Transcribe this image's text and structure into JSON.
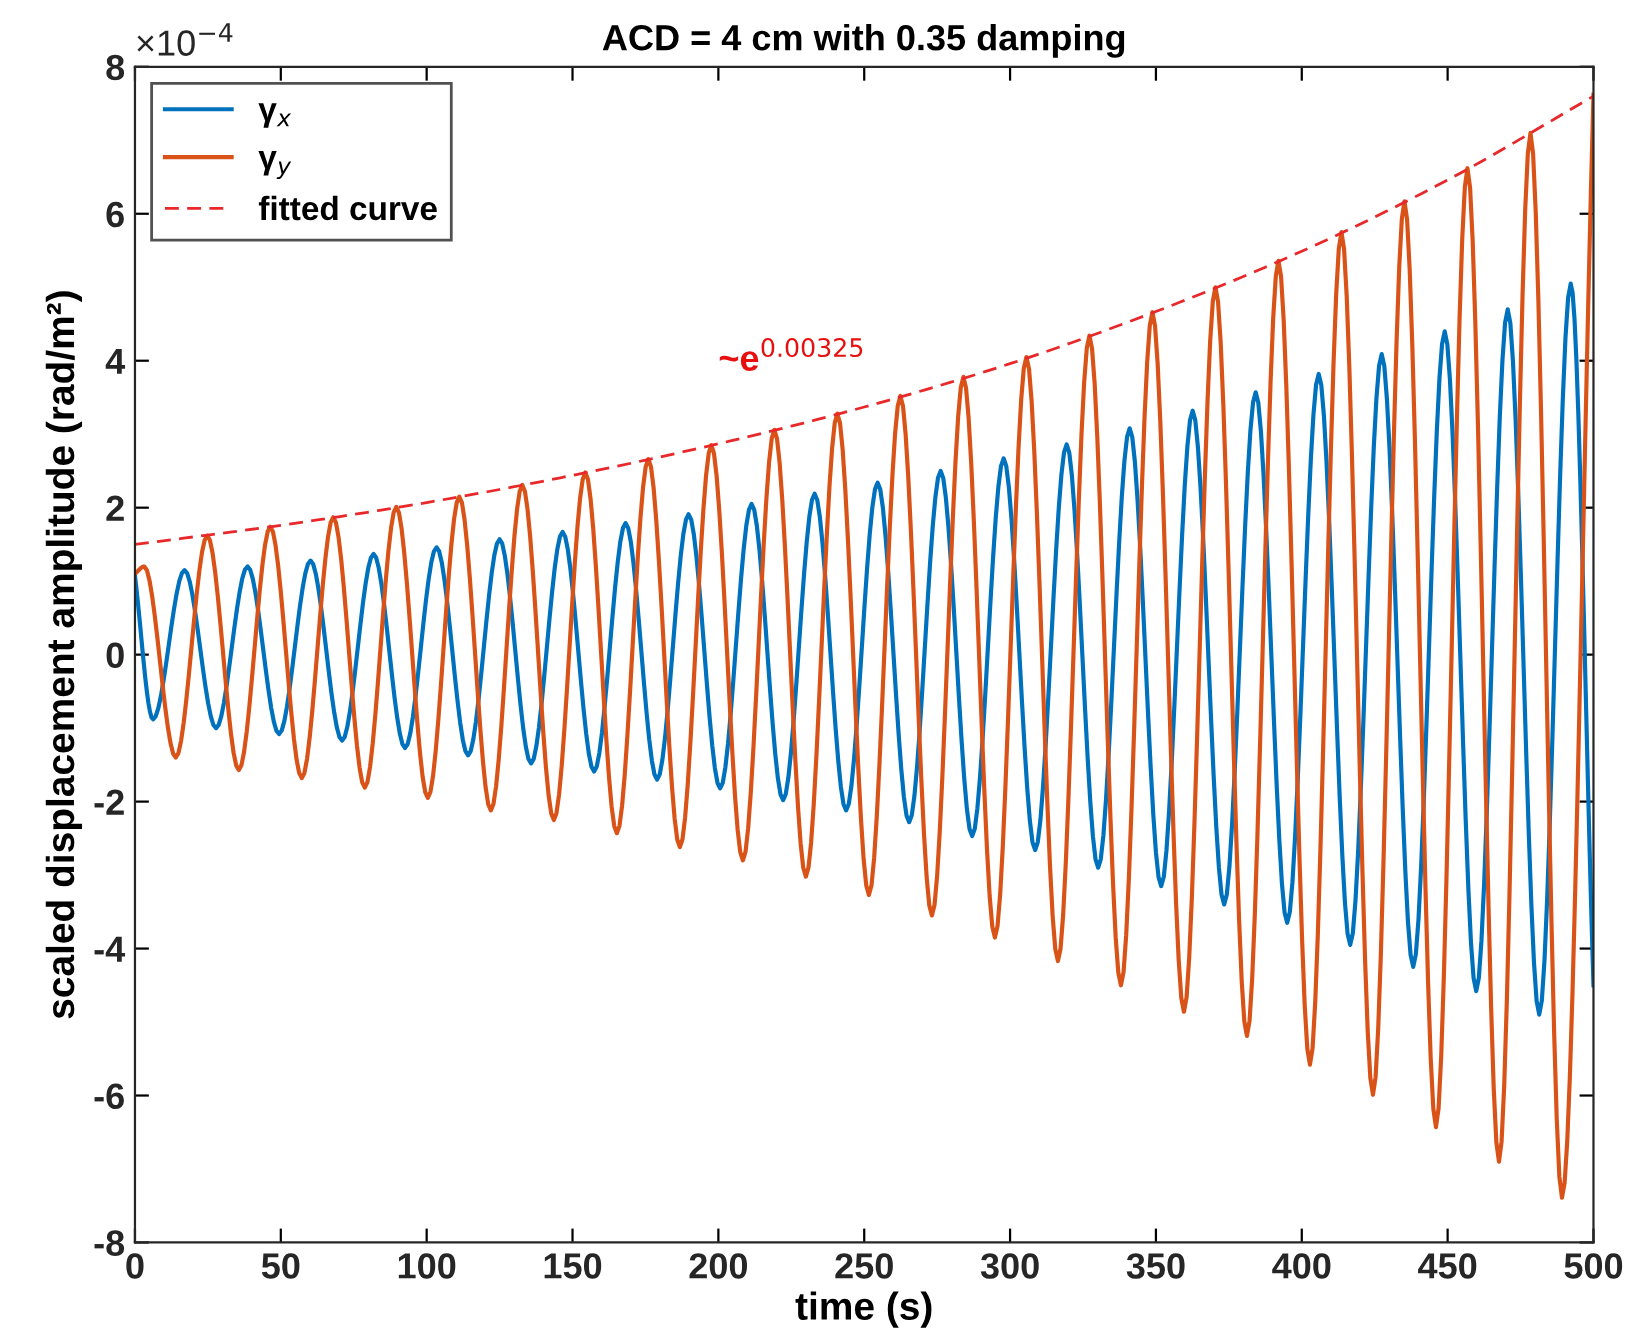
{
  "chart_data": {
    "type": "line",
    "title": "ACD = 4 cm with 0.35 damping",
    "xlabel": "time (s)",
    "ylabel": "scaled displacement amplitude (rad/m²)",
    "xlim": [
      0,
      500
    ],
    "ylim": [
      -8,
      8
    ],
    "xticks": [
      0,
      50,
      100,
      150,
      200,
      250,
      300,
      350,
      400,
      450,
      500
    ],
    "yticks": [
      -8,
      -6,
      -4,
      -2,
      0,
      2,
      4,
      6,
      8
    ],
    "grid": false,
    "legend": "top left",
    "annotations": [
      "×10$^{−4}$",
      "~e$^{0.00325}$"
    ],
    "series": [
      {
        "name": "γ$_{x}$",
        "color": "#0072bd",
        "line_style": "solid",
        "x": [
          0,
          6.2,
          17,
          27.8,
          38.6,
          49.4,
          60.2,
          71,
          81.8,
          92.6,
          103.4,
          114.2,
          125,
          135.8,
          146.6,
          157.4,
          168.2,
          179,
          189.8,
          200.6,
          211.4,
          222.2,
          233,
          243.8,
          254.6,
          265.4,
          276.2,
          287,
          297.8,
          308.6,
          319.4,
          330.2,
          341,
          351.8,
          362.6,
          373.4,
          384.2,
          395,
          405.8,
          416.6,
          427.4,
          438.2,
          449,
          459.8,
          470.6,
          481.4,
          492.2,
          500
        ],
        "values": [
          1.07,
          -0.88,
          1.15,
          -1.0,
          1.2,
          -1.08,
          1.28,
          -1.17,
          1.37,
          -1.27,
          1.46,
          -1.37,
          1.57,
          -1.48,
          1.67,
          -1.59,
          1.79,
          -1.7,
          1.91,
          -1.82,
          2.05,
          -1.98,
          2.19,
          -2.12,
          2.34,
          -2.28,
          2.5,
          -2.47,
          2.67,
          -2.66,
          2.86,
          -2.9,
          3.08,
          -3.15,
          3.32,
          -3.4,
          3.57,
          -3.65,
          3.82,
          -3.95,
          4.09,
          -4.25,
          4.4,
          -4.58,
          4.7,
          -4.9,
          5.05,
          -4.5
        ]
      },
      {
        "name": "γ$_{y}$",
        "color": "#d95319",
        "line_style": "solid",
        "x": [
          0,
          3.2,
          14,
          24.8,
          35.6,
          46.4,
          57.2,
          68,
          78.8,
          89.6,
          100.4,
          111.2,
          122,
          132.8,
          143.6,
          154.4,
          165.2,
          176,
          186.8,
          197.6,
          208.4,
          219.2,
          230,
          240.8,
          251.6,
          262.4,
          273.2,
          284,
          294.8,
          305.6,
          316.4,
          327.2,
          338,
          348.8,
          359.6,
          370.4,
          381.2,
          392,
          402.8,
          413.6,
          424.4,
          435.2,
          446,
          456.8,
          467.6,
          478.4,
          489.2,
          500
        ],
        "values": [
          1.1,
          1.2,
          -1.4,
          1.62,
          -1.57,
          1.74,
          -1.68,
          1.87,
          -1.81,
          2.01,
          -1.95,
          2.15,
          -2.12,
          2.31,
          -2.25,
          2.48,
          -2.43,
          2.66,
          -2.62,
          2.85,
          -2.8,
          3.06,
          -3.02,
          3.28,
          -3.27,
          3.52,
          -3.55,
          3.78,
          -3.85,
          4.05,
          -4.17,
          4.34,
          -4.5,
          4.66,
          -4.86,
          5.0,
          -5.19,
          5.36,
          -5.58,
          5.75,
          -5.99,
          6.17,
          -6.43,
          6.62,
          -6.9,
          7.1,
          -7.39,
          7.62
        ]
      },
      {
        "name": "fitted curve",
        "color": "#e8282a",
        "line_style": "dashed",
        "x": [
          0,
          50,
          100,
          150,
          200,
          250,
          300,
          350,
          400,
          450,
          500
        ],
        "values": [
          1.5,
          1.76,
          2.07,
          2.44,
          2.87,
          3.37,
          3.96,
          4.67,
          5.49,
          6.46,
          7.6
        ]
      }
    ]
  }
}
